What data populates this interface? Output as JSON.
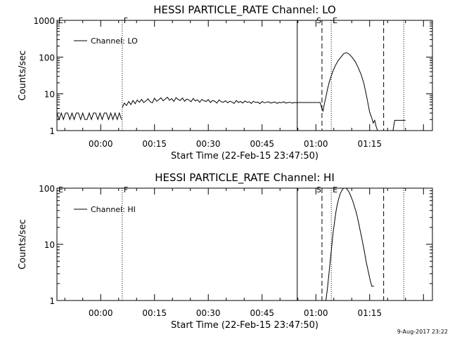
{
  "footer": {
    "timestamp": "9-Aug-2017 23:22"
  },
  "chart_data": [
    {
      "type": "line",
      "title": "HESSI PARTICLE_RATE Channel: LO",
      "xlabel": "Start Time (22-Feb-15 23:47:50)",
      "ylabel": "Counts/sec",
      "xscale": "time (minutes relative to 00:00)",
      "yscale": "log",
      "xlim": [
        -12.2,
        92.5
      ],
      "ylim": [
        1,
        1000
      ],
      "x_tick_labels": [
        {
          "x": 0,
          "label": "00:00"
        },
        {
          "x": 15,
          "label": "00:15"
        },
        {
          "x": 30,
          "label": "00:30"
        },
        {
          "x": 45,
          "label": "00:45"
        },
        {
          "x": 60,
          "label": "01:00"
        },
        {
          "x": 75,
          "label": "01:15"
        }
      ],
      "y_tick_labels": [
        {
          "y": 1,
          "label": "1"
        },
        {
          "y": 10,
          "label": "10"
        },
        {
          "y": 100,
          "label": "100"
        },
        {
          "y": 1000,
          "label": "1000"
        }
      ],
      "legend": {
        "position": "top-left",
        "entries": [
          "Channel: LO"
        ]
      },
      "grid": false,
      "markers": [
        {
          "x": -12.2,
          "label": "E",
          "style": "none"
        },
        {
          "x": 6.0,
          "label": "F",
          "style": "dotted"
        },
        {
          "x": 54.8,
          "label": "",
          "style": "solid"
        },
        {
          "x": 61.7,
          "label": "S",
          "style": "dashed"
        },
        {
          "x": 64.3,
          "label": "E",
          "style": "dotted"
        },
        {
          "x": 78.9,
          "label": "",
          "style": "dashed"
        },
        {
          "x": 84.5,
          "label": "",
          "style": "dotted"
        }
      ],
      "series": [
        {
          "name": "Channel: LO",
          "segments": [
            {
              "x": [
                -12.2,
                -11.6,
                -11,
                -10.4,
                -9.8,
                -9.2,
                -8.6,
                -8,
                -7.4,
                -6.8,
                -6.2,
                -5.6,
                -5,
                -4.4,
                -3.8,
                -3.2,
                -2.6,
                -2,
                -1.4,
                -0.8,
                -0.2,
                0.4,
                1,
                1.6,
                2.2,
                2.8,
                3.4,
                4,
                4.6,
                5.2,
                5.8
              ],
              "y": [
                3,
                2,
                3,
                2,
                3,
                3,
                2,
                3,
                2,
                3,
                3,
                2,
                3,
                2,
                2,
                3,
                2,
                3,
                3,
                2,
                3,
                2,
                3,
                3,
                2,
                3,
                2,
                3,
                2,
                3,
                2
              ]
            },
            {
              "x": [
                6,
                6.6,
                7.2,
                7.8,
                8.4,
                9,
                9.6,
                10.2,
                10.8,
                11.4,
                12,
                12.6,
                13.2,
                13.8,
                14.4,
                15,
                15.6,
                16.2,
                16.8,
                17.4,
                18,
                18.6,
                19.2,
                19.8,
                20.4,
                21,
                21.6,
                22.2,
                22.8,
                23.4,
                24,
                24.6,
                25.2,
                25.8,
                26.4,
                27,
                27.6,
                28.2,
                28.8,
                29.4,
                30,
                30.6,
                31.2,
                31.8,
                32.4,
                33,
                33.6,
                34.2,
                34.8,
                35.4,
                36,
                36.6,
                37.2,
                37.8,
                38.4,
                39,
                39.6,
                40.2,
                40.8,
                41.4,
                42,
                42.6,
                43.2,
                43.8,
                44.4,
                45,
                45.6,
                46.2,
                46.8,
                47.4,
                48,
                48.6,
                49.2,
                49.8,
                50.4,
                51,
                51.6,
                52.2,
                52.8,
                53.4,
                54,
                54.8
              ],
              "y": [
                4.2,
                5.6,
                4.8,
                6.2,
                5.1,
                6.6,
                5.4,
                6.8,
                5.9,
                7.1,
                5.8,
                6.4,
                7.3,
                6.1,
                5.7,
                7.6,
                6.3,
                6.9,
                7.8,
                6.5,
                7.2,
                8.1,
                6.7,
                7.4,
                6.2,
                7.9,
                7,
                6.6,
                7.7,
                6.3,
                7.2,
                6.8,
                6.1,
                7.5,
                6.4,
                6.9,
                5.9,
                7.1,
                6.5,
                6.2,
                7,
                5.8,
                6.6,
                6.3,
                5.6,
                6.8,
                6.1,
                5.9,
                6.5,
                5.7,
                6.3,
                6,
                5.5,
                6.6,
                5.8,
                6.2,
                5.6,
                6.4,
                5.9,
                6.1,
                5.5,
                6.3,
                5.8,
                6,
                5.4,
                6.2,
                5.7,
                5.9,
                6.1,
                5.6,
                5.8,
                6,
                5.5,
                5.9,
                5.7,
                6.1,
                5.6,
                5.8,
                5.9,
                5.6,
                5.8,
                5.7
              ]
            },
            {
              "x": [
                54.8,
                55.5,
                56.5,
                57.5,
                58.5,
                59.5,
                60.5,
                61.2,
                61.6,
                62,
                62.4,
                62.8,
                63.2,
                63.8,
                64.6,
                65.4,
                66.2,
                67,
                67.8,
                68.6,
                69.4,
                70.2,
                71,
                71.8,
                72.6,
                73.4,
                74.2,
                75,
                75.6
              ],
              "y": [
                5.8,
                5.8,
                5.8,
                5.8,
                5.8,
                5.8,
                5.8,
                5.8,
                4.2,
                3.4,
                5.6,
                8,
                13,
                22,
                38,
                58,
                80,
                100,
                125,
                132,
                118,
                96,
                75,
                52,
                34,
                19,
                8,
                3.2,
                2.2
              ]
            },
            {
              "x": [
                75.6,
                76,
                76.4,
                76.8,
                77.2
              ],
              "y": [
                2.2,
                1.6,
                1.9,
                1.3,
                1
              ]
            },
            {
              "x": [
                81.5,
                82,
                85
              ],
              "y": [
                1,
                1.9,
                1.9
              ]
            }
          ]
        }
      ]
    },
    {
      "type": "line",
      "title": "HESSI PARTICLE_RATE Channel: HI",
      "xlabel": "Start Time (22-Feb-15 23:47:50)",
      "ylabel": "Counts/sec",
      "xscale": "time (minutes relative to 00:00)",
      "yscale": "log",
      "xlim": [
        -12.2,
        92.5
      ],
      "ylim": [
        1,
        100
      ],
      "x_tick_labels": [
        {
          "x": 0,
          "label": "00:00"
        },
        {
          "x": 15,
          "label": "00:15"
        },
        {
          "x": 30,
          "label": "00:30"
        },
        {
          "x": 45,
          "label": "00:45"
        },
        {
          "x": 60,
          "label": "01:00"
        },
        {
          "x": 75,
          "label": "01:15"
        }
      ],
      "y_tick_labels": [
        {
          "y": 1,
          "label": "1"
        },
        {
          "y": 10,
          "label": "10"
        },
        {
          "y": 100,
          "label": "100"
        }
      ],
      "legend": {
        "position": "top-left",
        "entries": [
          "Channel: HI"
        ]
      },
      "grid": false,
      "markers": [
        {
          "x": -12.2,
          "label": "E",
          "style": "none"
        },
        {
          "x": 6.0,
          "label": "F",
          "style": "dotted"
        },
        {
          "x": 54.8,
          "label": "",
          "style": "solid"
        },
        {
          "x": 61.7,
          "label": "S",
          "style": "dashed"
        },
        {
          "x": 64.3,
          "label": "E",
          "style": "dotted"
        },
        {
          "x": 78.9,
          "label": "",
          "style": "dashed"
        },
        {
          "x": 84.5,
          "label": "",
          "style": "dotted"
        }
      ],
      "series": [
        {
          "name": "Channel: HI",
          "segments": [
            {
              "x": [
                62.8,
                63.2,
                63.6,
                64,
                64.4,
                64.8,
                65.2,
                65.6,
                66,
                66.4,
                66.8,
                67.2,
                67.6,
                68,
                68.4,
                68.8,
                69.2,
                69.6,
                70,
                70.4,
                70.8,
                71.2,
                71.6,
                72,
                72.4,
                72.8,
                73.2,
                73.6,
                74,
                74.4,
                74.8,
                75.2,
                75.6,
                76.2
              ],
              "y": [
                1,
                1.6,
                2.8,
                5,
                9,
                16,
                25,
                38,
                52,
                66,
                80,
                90,
                98,
                104,
                100,
                94,
                86,
                76,
                66,
                56,
                46,
                38,
                30,
                23,
                17,
                13,
                9.5,
                7,
                5,
                3.8,
                2.9,
                2.2,
                1.8,
                1.8
              ]
            }
          ]
        }
      ]
    }
  ]
}
